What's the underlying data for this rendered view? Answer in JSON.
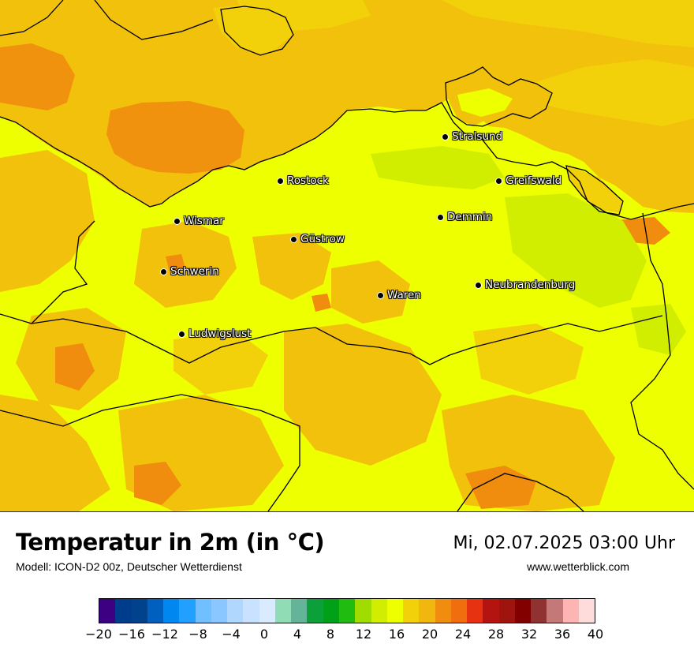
{
  "map": {
    "region": "Mecklenburg-Vorpommern",
    "cities": [
      {
        "name": "Stralsund",
        "key": "stralsund"
      },
      {
        "name": "Rostock",
        "key": "rostock"
      },
      {
        "name": "Greifswald",
        "key": "greifswald"
      },
      {
        "name": "Wismar",
        "key": "wismar"
      },
      {
        "name": "Demmin",
        "key": "demmin"
      },
      {
        "name": "Güstrow",
        "key": "guestrow"
      },
      {
        "name": "Schwerin",
        "key": "schwerin"
      },
      {
        "name": "Neubrandenburg",
        "key": "neubrandenburg"
      },
      {
        "name": "Waren",
        "key": "waren"
      },
      {
        "name": "Ludwigslust",
        "key": "ludwigslust"
      }
    ],
    "colors": {
      "sea": "#f2b70f",
      "sea_dark": "#f08c0e",
      "land": "#eeff00",
      "land_orange": "#f0a20c",
      "land_green": "#d2ee00"
    }
  },
  "footer": {
    "title": "Temperatur in 2m (in °C)",
    "subtitle": "Modell: ICON-D2 00z, Deutscher Wetterdienst",
    "datetime": "Mi, 02.07.2025 03:00 Uhr",
    "website": "www.wetterblick.com"
  },
  "legend": {
    "tick_labels": [
      "−20",
      "−16",
      "−12",
      "−8",
      "−4",
      "0",
      "4",
      "8",
      "12",
      "16",
      "20",
      "24",
      "28",
      "32",
      "36",
      "40"
    ],
    "tick_values": [
      -20,
      -16,
      -12,
      -8,
      -4,
      0,
      4,
      8,
      12,
      16,
      20,
      24,
      28,
      32,
      36,
      40
    ],
    "range": [
      -20,
      40
    ],
    "colors": [
      "#3d0083",
      "#003c8c",
      "#00438c",
      "#0060c0",
      "#0088f0",
      "#22a0ff",
      "#70bfff",
      "#8ac6ff",
      "#b0d8ff",
      "#c8e2ff",
      "#daeaff",
      "#90dcb4",
      "#64b49a",
      "#0ba03a",
      "#00a018",
      "#20bc10",
      "#a0dc00",
      "#d2ee00",
      "#eeff00",
      "#f2d10a",
      "#f2b70f",
      "#f08c0e",
      "#f06e0e",
      "#e63210",
      "#b4140f",
      "#a0140f",
      "#820000",
      "#913232",
      "#c47878",
      "#ffb4b4",
      "#ffdcdc"
    ]
  }
}
